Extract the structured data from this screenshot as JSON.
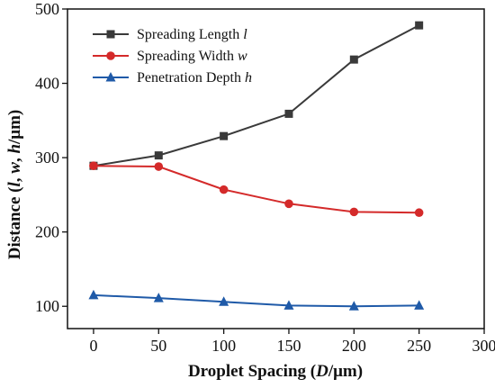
{
  "chart_data": {
    "type": "line",
    "x": [
      0,
      50,
      100,
      150,
      200,
      250
    ],
    "xlim": [
      -20,
      300
    ],
    "ylim": [
      70,
      500
    ],
    "xticks": [
      "0",
      "50",
      "100",
      "150",
      "200",
      "250",
      "300"
    ],
    "xtick_values": [
      0,
      50,
      100,
      150,
      200,
      250,
      300
    ],
    "yticks": [
      "100",
      "200",
      "300",
      "400",
      "500"
    ],
    "ytick_values": [
      100,
      200,
      300,
      400,
      500
    ],
    "xlabel": {
      "prefix": "Droplet Spacing (",
      "var": "D",
      "suffix": "/μm)"
    },
    "ylabel": {
      "prefix": "Distance (",
      "v1": "l",
      "sep1": ", ",
      "v2": "w",
      "sep2": ", ",
      "v3": "h",
      "suffix": "/μm)"
    },
    "legend_position": "top-left",
    "grid": false,
    "series": [
      {
        "name": "Spreading Length",
        "var": "l",
        "color": "#3a3a3a",
        "marker": "square",
        "values": [
          289,
          303,
          329,
          359,
          432,
          478
        ]
      },
      {
        "name": "Spreading Width",
        "var": "w",
        "color": "#d42a2a",
        "marker": "circle",
        "values": [
          289,
          288,
          257,
          238,
          227,
          226
        ]
      },
      {
        "name": "Penetration Depth",
        "var": "h",
        "color": "#1f5aa8",
        "marker": "triangle",
        "values": [
          115,
          111,
          106,
          101,
          100,
          101
        ]
      }
    ]
  }
}
